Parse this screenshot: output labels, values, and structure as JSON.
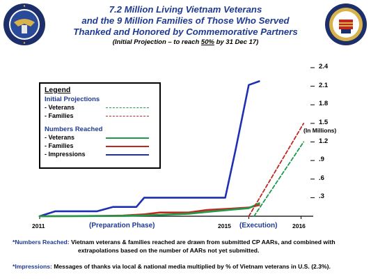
{
  "header": {
    "title_line1": "7.2 Million Living Vietnam Veterans",
    "title_line2": "and the 9 Million Families of Those Who Served",
    "title_line3": "Thanked and Honored by Commemorative Partners",
    "subtitle_pre": "(Initial Projection – to reach ",
    "subtitle_pct": "50%",
    "subtitle_post": " by 31 Dec 17)"
  },
  "seals": {
    "left_text": "DEPARTMENT OF DEFENSE",
    "right_text": "THE UNITED STATES OF AMERICA VIETNAM WAR COMMEMORATION"
  },
  "legend": {
    "title": "Legend",
    "group1": "Initial Projections",
    "group1_items": [
      "- Veterans",
      "- Families"
    ],
    "group2": "Numbers Reached",
    "group2_items": [
      "- Veterans",
      "- Families",
      "- Impressions"
    ]
  },
  "chart_data": {
    "type": "line",
    "ylabel": "(In Millions)",
    "ylim": [
      0,
      2.4
    ],
    "yticks": [
      ".3",
      ".6",
      ".9",
      "1.2",
      "1.5",
      "1.8",
      "2.1",
      "2.4"
    ],
    "ytick_values": [
      0.3,
      0.6,
      0.9,
      1.2,
      1.5,
      1.8,
      2.1,
      2.4
    ],
    "xlabels": [
      "2011",
      "2015",
      "2016"
    ],
    "xlabel_values": [
      2011,
      2015,
      2016
    ],
    "xlim": [
      2011,
      2016.1
    ],
    "phase_labels": {
      "prep": "(Preparation Phase)",
      "exec": "(Execution)"
    },
    "series": [
      {
        "name": "Impressions",
        "color": "#1f2fb4",
        "dash": false,
        "width": 2.6,
        "x": [
          2011,
          2011.3,
          2011.6,
          2012.1,
          2012.4,
          2012.6,
          2012.85,
          2013.0,
          2013.35,
          2013.7,
          2014.1,
          2014.35,
          2014.55,
          2014.75,
          2015.0,
          2015.2
        ],
        "y": [
          0,
          0.08,
          0.08,
          0.08,
          0.15,
          0.15,
          0.15,
          0.3,
          0.3,
          0.3,
          0.3,
          0.3,
          0.3,
          1.08,
          2.12,
          2.18
        ]
      },
      {
        "name": "Families",
        "color": "#c0281f",
        "dash": false,
        "width": 2.6,
        "x": [
          2011,
          2012.2,
          2012.6,
          2013.0,
          2013.3,
          2013.55,
          2013.85,
          2014.2,
          2014.6,
          2015.0,
          2015.2
        ],
        "y": [
          0,
          0.005,
          0.01,
          0.03,
          0.06,
          0.06,
          0.06,
          0.1,
          0.12,
          0.14,
          0.18
        ]
      },
      {
        "name": "Veterans",
        "color": "#1e9a4a",
        "dash": false,
        "width": 2.6,
        "x": [
          2011,
          2012.6,
          2013.3,
          2013.85,
          2014.2,
          2014.6,
          2015.0,
          2015.2
        ],
        "y": [
          0,
          0.005,
          0.02,
          0.04,
          0.07,
          0.1,
          0.13,
          0.21
        ]
      },
      {
        "name": "Families",
        "color": "#c0281f",
        "dash": true,
        "width": 1.8,
        "x": [
          2015.0,
          2016.05
        ],
        "y": [
          0,
          1.5
        ]
      },
      {
        "name": "Veterans",
        "color": "#1e9a4a",
        "dash": true,
        "width": 1.8,
        "x": [
          2015.1,
          2016.05
        ],
        "y": [
          0,
          1.2
        ]
      }
    ]
  },
  "footnotes": {
    "n1_tag": "*Numbers Reached:",
    "n1_text": "Vietnam veterans & families reached are drawn from submitted CP AARs, and combined with",
    "n1_text2": "extrapolations based on the number of AARs not yet submitted.",
    "n2_tag": "*Impressions:",
    "n2_text": "Messages of thanks via local & national media multiplied by % of Vietnam veterans in U.S. (2.3%)."
  }
}
